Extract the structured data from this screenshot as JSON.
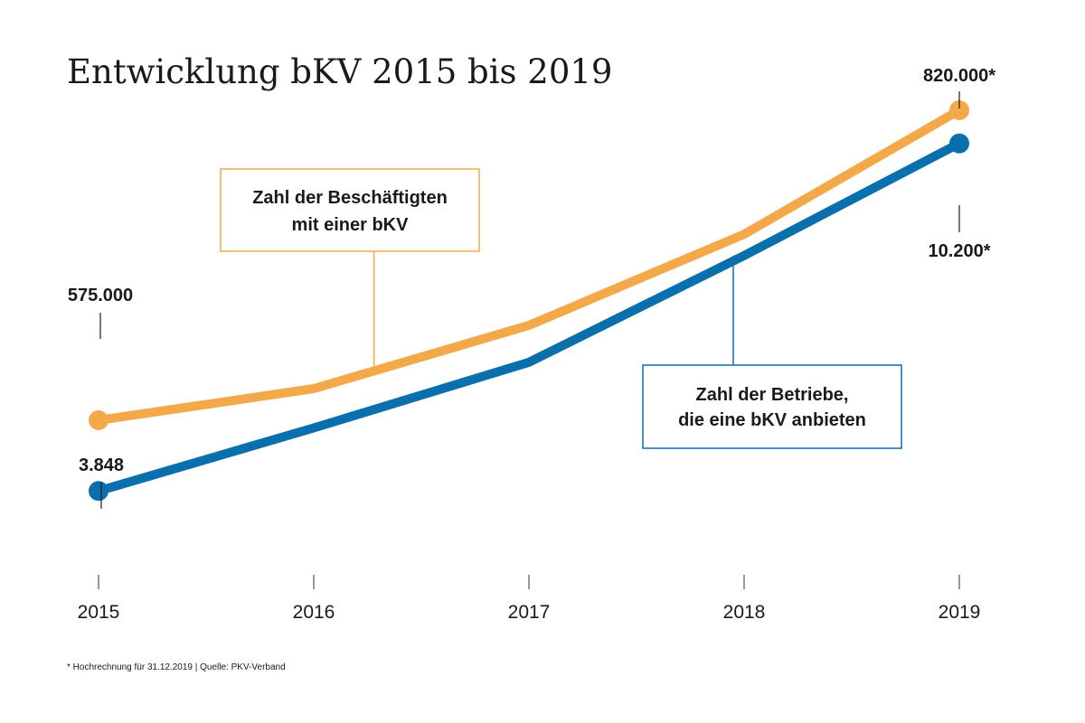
{
  "colors": {
    "employees": "#f3a94a",
    "companies": "#0a6fad",
    "text": "#1a1a1a",
    "tick": "#555555"
  },
  "chart_data": {
    "type": "line",
    "title": "Entwicklung bKV 2015 bis 2019",
    "categories": [
      "2015",
      "2016",
      "2017",
      "2018",
      "2019"
    ],
    "series": [
      {
        "name": "Zahl der Beschäftigten mit einer bKV",
        "name_lines": [
          "Zahl der Beschäftigten",
          "mit einer bKV"
        ],
        "color_key": "employees",
        "values": [
          575000,
          600000,
          650000,
          722000,
          820000
        ],
        "endpoint_labels": {
          "start": "575.000",
          "end": "820.000*"
        },
        "ylim": [
          450000,
          850000
        ]
      },
      {
        "name": "Zahl der Betriebe, die eine bKV anbieten",
        "name_lines": [
          "Zahl der Betriebe,",
          "die eine bKV anbieten"
        ],
        "color_key": "companies",
        "values": [
          3848,
          5000,
          6200,
          8150,
          10200
        ],
        "endpoint_labels": {
          "start": "3.848",
          "end": "10.200*"
        },
        "ylim": [
          2250,
          11500
        ]
      }
    ],
    "grid": false,
    "legend": "callout boxes"
  },
  "footnote": "* Hochrechnung für 31.12.2019  |  Quelle: PKV-Verband"
}
